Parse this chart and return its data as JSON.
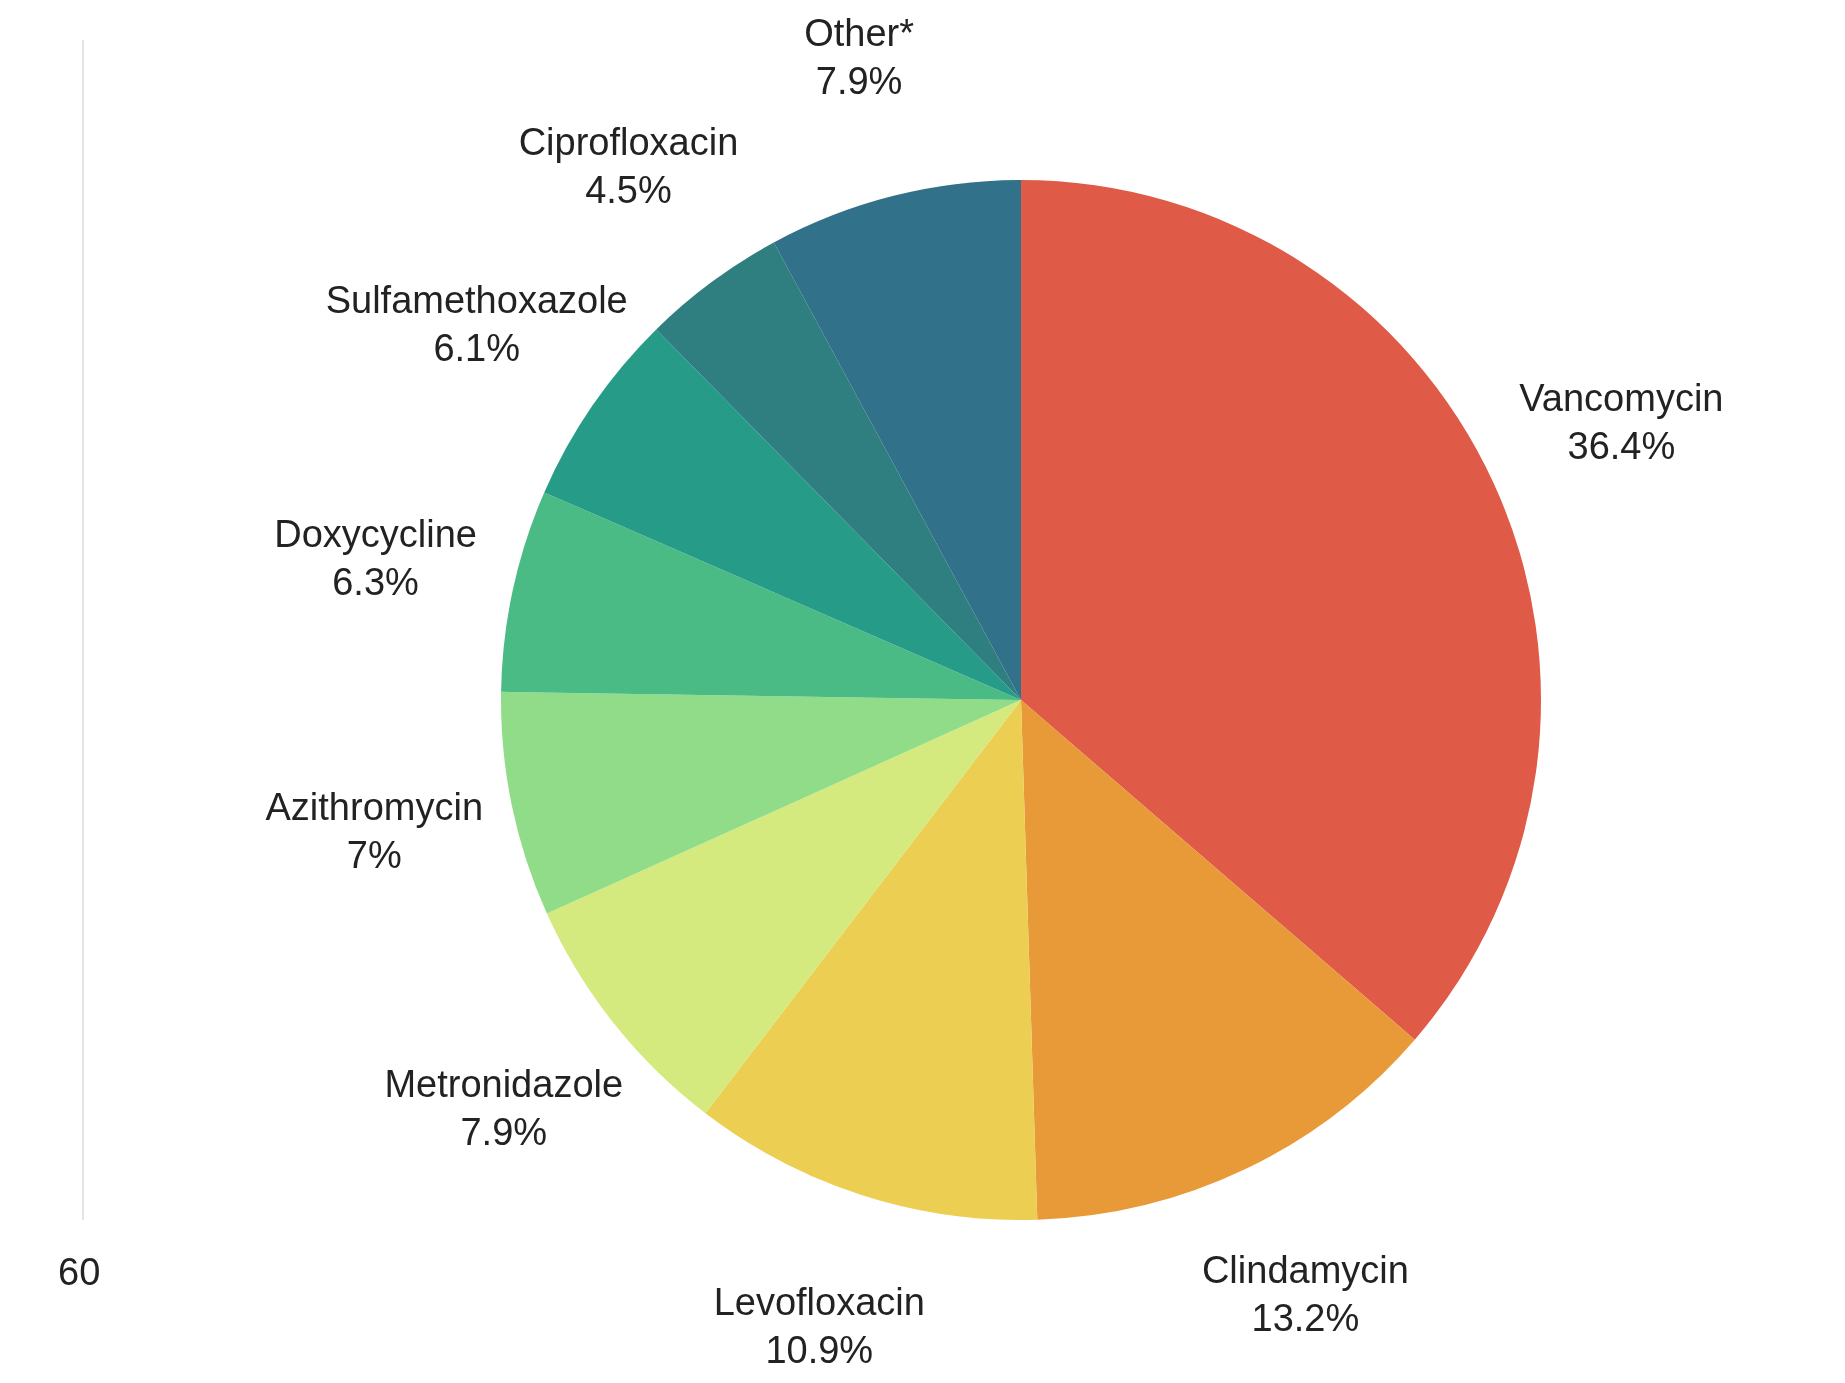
{
  "chart_data": {
    "type": "pie",
    "categories": [
      "Vancomycin",
      "Clindamycin",
      "Levofloxacin",
      "Metronidazole",
      "Azithromycin",
      "Doxycycline",
      "Sulfamethoxazole",
      "Ciprofloxacin",
      "Other*"
    ],
    "values": [
      36.4,
      13.2,
      10.9,
      7.9,
      7,
      6.3,
      6.1,
      4.5,
      7.9
    ],
    "value_labels": [
      "36.4%",
      "13.2%",
      "10.9%",
      "7.9%",
      "7%",
      "6.3%",
      "6.1%",
      "4.5%",
      "7.9%"
    ],
    "colors": [
      "#e05a48",
      "#e89a38",
      "#ecce52",
      "#d5ea7e",
      "#90dc88",
      "#4bbb85",
      "#269b88",
      "#2f7e80",
      "#317189"
    ],
    "annotations": [
      "60"
    ],
    "legend": false
  }
}
